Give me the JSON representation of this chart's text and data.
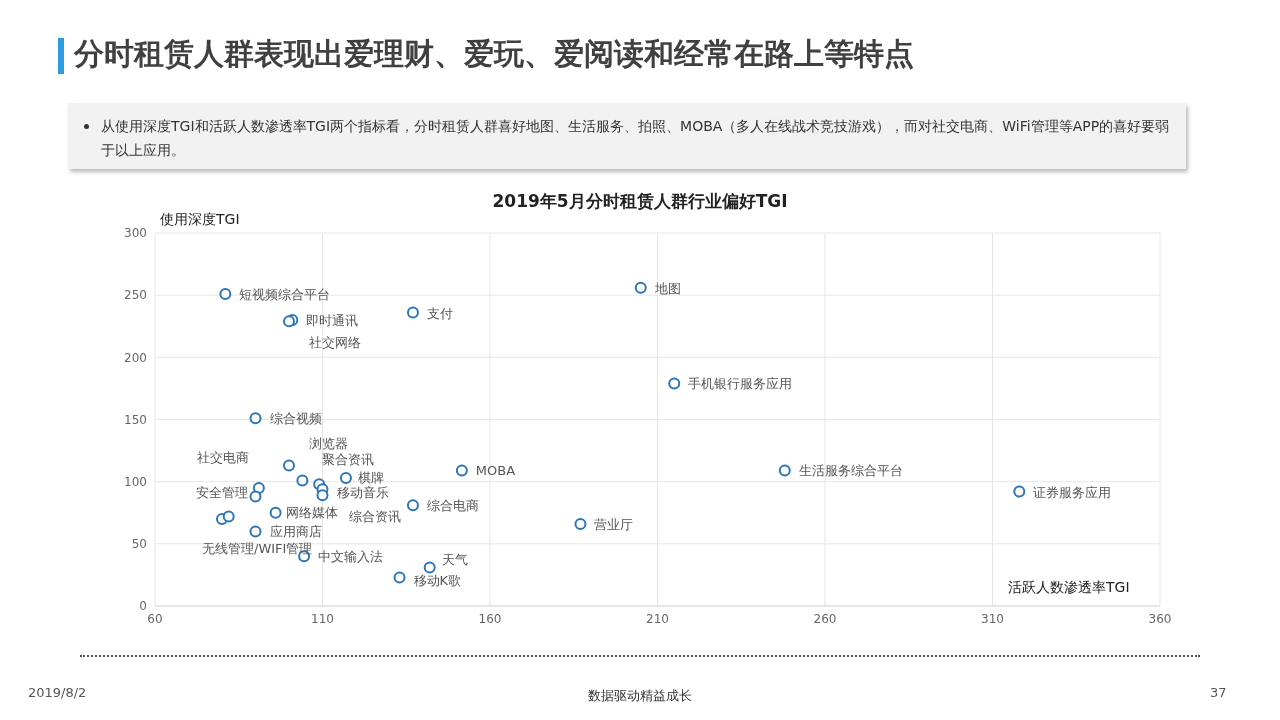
{
  "chart_data": {
    "type": "scatter",
    "title": "分时租赁人群表现出爱理财、爱玩、爱阅读和经常在路上等特点",
    "subtitle": "2019年5月分时租赁人群行业偏好TGI",
    "xlabel": "活跃人数渗透率TGI",
    "ylabel": "使用深度TGI",
    "xlim": [
      60,
      360
    ],
    "xticks": [
      60,
      110,
      160,
      210,
      260,
      310,
      360
    ],
    "ylim": [
      0,
      300
    ],
    "yticks": [
      0,
      50,
      100,
      150,
      200,
      250,
      300
    ],
    "grid": true,
    "legend": false,
    "marker": "circle",
    "series": [
      {
        "color": "#2e75b6",
        "x": [
          81,
          101,
          100,
          137,
          205,
          215,
          90,
          100,
          104,
          109,
          110,
          110,
          117,
          151.6,
          91,
          90,
          96,
          80,
          82,
          90,
          104.5,
          142,
          133,
          137,
          187,
          248,
          318
        ],
        "values": [
          251,
          230,
          229,
          236,
          256,
          179,
          151,
          113,
          101,
          98,
          94,
          89,
          103,
          109,
          95,
          88,
          75,
          70,
          72,
          60,
          40,
          31,
          23,
          81,
          66,
          109,
          92
        ]
      }
    ],
    "annotations": [
      "从使用深度TGI和活跃人数渗透率TGI两个指标看，分时租赁人群喜好地图、生活服务、拍照、MOBA（多人在线战术竞技游戏），而对社交电商、WiFi管理等APP的喜好要弱于以上应用。",
      "2019/8/2",
      "数据驱动精益成长",
      "37",
      {
        "text": "短视频综合平台",
        "x": 81,
        "y": 251
      },
      {
        "text": "即时通讯",
        "x": 101,
        "y": 230
      },
      {
        "text": "社交网络",
        "x": 100,
        "y": 229
      },
      {
        "text": "支付",
        "x": 137,
        "y": 236
      },
      {
        "text": "地图",
        "x": 205,
        "y": 256
      },
      {
        "text": "手机银行服务应用",
        "x": 215,
        "y": 179
      },
      {
        "text": "综合视频",
        "x": 90,
        "y": 151
      },
      {
        "text": "浏览器",
        "x": 100,
        "y": 113
      },
      {
        "text": "聚合资讯",
        "x": 104,
        "y": 101
      },
      {
        "text": "网络媒体",
        "x": 96,
        "y": 75
      },
      {
        "text": "移动音乐",
        "x": 110,
        "y": 94
      },
      {
        "text": "综合资讯",
        "x": 110,
        "y": 89
      },
      {
        "text": "棋牌",
        "x": 117,
        "y": 103
      },
      {
        "text": "MOBA",
        "x": 151.6,
        "y": 109
      },
      {
        "text": "社交电商",
        "x": 91,
        "y": 95
      },
      {
        "text": "安全管理",
        "x": 90,
        "y": 88
      },
      {
        "text": "无线管理/WIFI管理",
        "x": 80,
        "y": 70
      },
      {
        "text": "应用商店",
        "x": 90,
        "y": 60
      },
      {
        "text": "中文输入法",
        "x": 104.5,
        "y": 40
      },
      {
        "text": "天气",
        "x": 142,
        "y": 31
      },
      {
        "text": "移动K歌",
        "x": 133,
        "y": 23
      },
      {
        "text": "综合电商",
        "x": 137,
        "y": 81
      },
      {
        "text": "营业厅",
        "x": 187,
        "y": 66
      },
      {
        "text": "生活服务综合平台",
        "x": 248,
        "y": 109
      },
      {
        "text": "证券服务应用",
        "x": 318,
        "y": 92
      }
    ]
  }
}
